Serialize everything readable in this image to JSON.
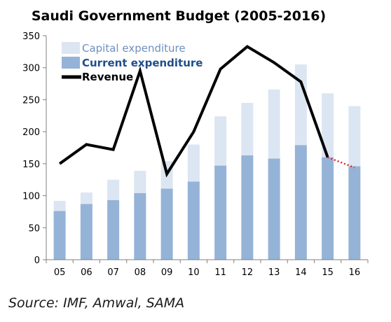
{
  "chart_data": {
    "type": "bar",
    "title": "Saudi Government Budget (2005-2016)",
    "categories": [
      "05",
      "06",
      "07",
      "08",
      "09",
      "10",
      "11",
      "12",
      "13",
      "14",
      "15",
      "16"
    ],
    "series": [
      {
        "name": "Current expenditure",
        "kind": "stacked-bar",
        "color": "#95b3d7",
        "values": [
          76,
          87,
          93,
          104,
          111,
          122,
          147,
          163,
          158,
          179,
          160,
          146
        ]
      },
      {
        "name": "Capital expenditure",
        "kind": "stacked-bar",
        "color": "#dce6f2",
        "values": [
          16,
          18,
          32,
          35,
          43,
          58,
          77,
          82,
          108,
          126,
          100,
          94
        ]
      },
      {
        "name": "Revenue",
        "kind": "line",
        "color": "#000000",
        "values": [
          150,
          180,
          172,
          295,
          134,
          200,
          298,
          333,
          308,
          278,
          160,
          144
        ],
        "projected_from_index": 10,
        "projected_color": "#e8222b"
      }
    ],
    "xlabel": "",
    "ylabel": "",
    "ylim": [
      0,
      350
    ],
    "yticks": [
      0,
      50,
      100,
      150,
      200,
      250,
      300,
      350
    ],
    "legend_position": "top-left",
    "grid": false
  },
  "source_text": "Source: IMF, Amwal, SAMA"
}
